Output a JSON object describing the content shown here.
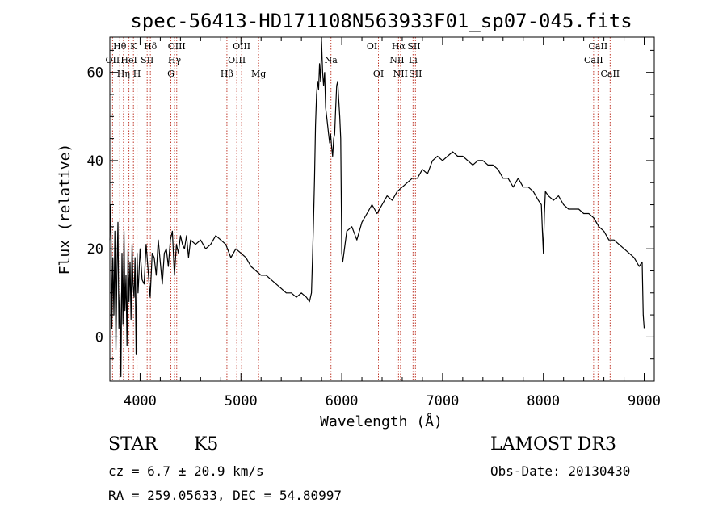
{
  "chart_data": {
    "type": "line",
    "title": "spec-56413-HD171108N563933F01_sp07-045.fits",
    "xlabel": "Wavelength (Å)",
    "ylabel": "Flux (relative)",
    "xlim": [
      3700,
      9100
    ],
    "ylim": [
      -10,
      68
    ],
    "x_ticks": [
      4000,
      5000,
      6000,
      7000,
      8000,
      9000
    ],
    "x_tick_labels": [
      "4000",
      "5000",
      "6000",
      "7000",
      "8000",
      "9000"
    ],
    "y_ticks": [
      0,
      20,
      40,
      60
    ],
    "y_tick_labels": [
      "0",
      "20",
      "40",
      "60"
    ],
    "grid": false,
    "series": [
      {
        "color": "#000000",
        "x": [
          3700,
          3710,
          3720,
          3730,
          3740,
          3750,
          3760,
          3770,
          3780,
          3790,
          3800,
          3810,
          3820,
          3830,
          3840,
          3850,
          3860,
          3870,
          3880,
          3890,
          3900,
          3910,
          3920,
          3930,
          3940,
          3950,
          3960,
          3970,
          3980,
          3990,
          4000,
          4020,
          4040,
          4060,
          4080,
          4100,
          4120,
          4140,
          4160,
          4180,
          4200,
          4220,
          4240,
          4260,
          4280,
          4300,
          4320,
          4340,
          4360,
          4380,
          4400,
          4420,
          4440,
          4460,
          4480,
          4500,
          4550,
          4600,
          4650,
          4700,
          4750,
          4800,
          4850,
          4900,
          4950,
          5000,
          5050,
          5100,
          5150,
          5200,
          5250,
          5300,
          5350,
          5400,
          5450,
          5500,
          5550,
          5600,
          5650,
          5680,
          5700,
          5710,
          5720,
          5730,
          5740,
          5750,
          5760,
          5770,
          5780,
          5790,
          5800,
          5810,
          5820,
          5830,
          5840,
          5850,
          5860,
          5870,
          5880,
          5890,
          5900,
          5910,
          5920,
          5930,
          5940,
          5950,
          5960,
          5970,
          5980,
          5990,
          6000,
          6010,
          6050,
          6100,
          6150,
          6200,
          6250,
          6300,
          6350,
          6400,
          6450,
          6500,
          6550,
          6600,
          6650,
          6700,
          6750,
          6800,
          6850,
          6900,
          6950,
          7000,
          7050,
          7100,
          7150,
          7200,
          7250,
          7300,
          7350,
          7400,
          7450,
          7500,
          7550,
          7600,
          7650,
          7700,
          7750,
          7800,
          7850,
          7900,
          7950,
          7980,
          7990,
          8000,
          8010,
          8020,
          8050,
          8100,
          8150,
          8200,
          8250,
          8300,
          8350,
          8400,
          8450,
          8500,
          8550,
          8600,
          8650,
          8700,
          8750,
          8800,
          8850,
          8900,
          8950,
          8980,
          8990,
          9000
        ],
        "y": [
          22,
          30,
          2,
          18,
          5,
          24,
          -3,
          14,
          26,
          2,
          10,
          -9,
          19,
          3,
          24,
          6,
          14,
          -2,
          20,
          8,
          17,
          4,
          21,
          12,
          9,
          18,
          -4,
          19,
          10,
          15,
          20,
          13,
          12,
          21,
          15,
          9,
          19,
          18,
          14,
          22,
          17,
          12,
          19,
          20,
          16,
          22,
          24,
          14,
          21,
          19,
          23,
          21,
          20,
          23,
          18,
          22,
          21,
          22,
          20,
          21,
          23,
          22,
          21,
          18,
          20,
          19,
          18,
          16,
          15,
          14,
          14,
          13,
          12,
          11,
          10,
          10,
          9,
          10,
          9,
          8,
          10,
          18,
          26,
          36,
          48,
          55,
          58,
          56,
          62,
          58,
          67,
          60,
          57,
          60,
          52,
          50,
          48,
          46,
          44,
          46,
          43,
          41,
          45,
          46,
          52,
          57,
          58,
          54,
          50,
          45,
          19,
          17,
          24,
          25,
          22,
          26,
          28,
          30,
          28,
          30,
          32,
          31,
          33,
          34,
          35,
          36,
          36,
          38,
          37,
          40,
          41,
          40,
          41,
          42,
          41,
          41,
          40,
          39,
          40,
          40,
          39,
          39,
          38,
          36,
          36,
          34,
          36,
          34,
          34,
          33,
          31,
          30,
          24,
          19,
          28,
          33,
          32,
          31,
          32,
          30,
          29,
          29,
          29,
          28,
          28,
          27,
          25,
          24,
          22,
          22,
          21,
          20,
          19,
          18,
          16,
          17,
          5,
          2
        ]
      }
    ],
    "lines": [
      {
        "label": "Hθ",
        "wl": 3798,
        "row": 0
      },
      {
        "label": "OII",
        "wl": 3727,
        "row": 1
      },
      {
        "label": "Hη",
        "wl": 3835,
        "row": 2
      },
      {
        "label": "HeI",
        "wl": 3889,
        "row": 1
      },
      {
        "label": "K",
        "wl": 3934,
        "row": 0
      },
      {
        "label": "H",
        "wl": 3969,
        "row": 2
      },
      {
        "label": "SII",
        "wl": 4070,
        "row": 1
      },
      {
        "label": "Hδ",
        "wl": 4102,
        "row": 0
      },
      {
        "label": "G",
        "wl": 4305,
        "row": 2
      },
      {
        "label": "Hγ",
        "wl": 4341,
        "row": 1
      },
      {
        "label": "OIII",
        "wl": 4363,
        "row": 0
      },
      {
        "label": "Hβ",
        "wl": 4861,
        "row": 2
      },
      {
        "label": "OIII",
        "wl": 4959,
        "row": 1
      },
      {
        "label": "OIII",
        "wl": 5007,
        "row": 0
      },
      {
        "label": "Mg",
        "wl": 5175,
        "row": 2
      },
      {
        "label": "Na",
        "wl": 5893,
        "row": 1
      },
      {
        "label": "OI",
        "wl": 6300,
        "row": 0
      },
      {
        "label": "OI",
        "wl": 6364,
        "row": 2
      },
      {
        "label": "NII",
        "wl": 6548,
        "row": 1
      },
      {
        "label": "Hα",
        "wl": 6563,
        "row": 0
      },
      {
        "label": "NII",
        "wl": 6583,
        "row": 2
      },
      {
        "label": "Li",
        "wl": 6707,
        "row": 1
      },
      {
        "label": "SII",
        "wl": 6716,
        "row": 0
      },
      {
        "label": "SII",
        "wl": 6731,
        "row": 2
      },
      {
        "label": "CaII",
        "wl": 8498,
        "row": 1
      },
      {
        "label": "CaII",
        "wl": 8542,
        "row": 0
      },
      {
        "label": "CaII",
        "wl": 8662,
        "row": 2
      }
    ]
  },
  "info": {
    "object_class": "STAR",
    "subclass": "K5",
    "survey": "LAMOST DR3",
    "redshift": "cz = 6.7 ± 20.9 km/s",
    "obs_date": "Obs-Date: 20130430",
    "coords": "RA = 259.05633, DEC =  54.80997"
  },
  "colors": {
    "line_marker": "#c0392b",
    "spectrum": "#000000"
  }
}
